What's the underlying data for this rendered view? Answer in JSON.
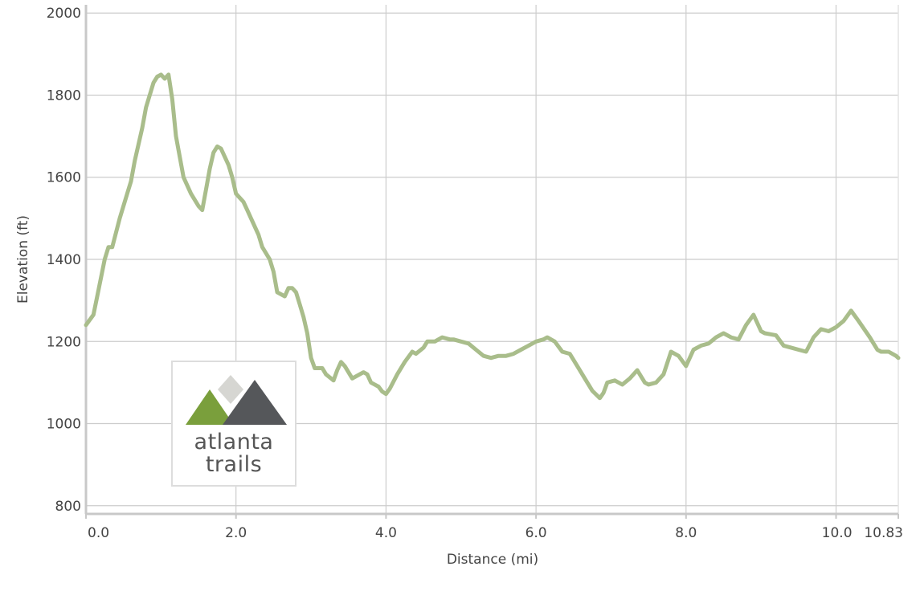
{
  "chart_data": {
    "type": "area",
    "xlabel": "Distance (mi)",
    "ylabel": "Elevation (ft)",
    "xlim": [
      0,
      10.83
    ],
    "ylim": [
      780,
      2020
    ],
    "x_ticks": [
      {
        "value": 0,
        "label": "0.0"
      },
      {
        "value": 2,
        "label": "2.0"
      },
      {
        "value": 4,
        "label": "4.0"
      },
      {
        "value": 6,
        "label": "6.0"
      },
      {
        "value": 8,
        "label": "8.0"
      },
      {
        "value": 10,
        "label": "10.0"
      },
      {
        "value": 10.83,
        "label": "10.83"
      }
    ],
    "y_ticks": [
      {
        "value": 800,
        "label": "800"
      },
      {
        "value": 1000,
        "label": "1000"
      },
      {
        "value": 1200,
        "label": "1200"
      },
      {
        "value": 1400,
        "label": "1400"
      },
      {
        "value": 1600,
        "label": "1600"
      },
      {
        "value": 1800,
        "label": "1800"
      },
      {
        "value": 2000,
        "label": "2000"
      }
    ],
    "grid": true,
    "series": [
      {
        "color": "#a9bd8b",
        "x": [
          0,
          0.1,
          0.15,
          0.25,
          0.3,
          0.35,
          0.45,
          0.55,
          0.6,
          0.65,
          0.75,
          0.8,
          0.9,
          0.95,
          1.0,
          1.05,
          1.1,
          1.15,
          1.2,
          1.25,
          1.3,
          1.4,
          1.5,
          1.55,
          1.6,
          1.65,
          1.7,
          1.75,
          1.8,
          1.85,
          1.9,
          1.95,
          2.0,
          2.1,
          2.15,
          2.2,
          2.3,
          2.35,
          2.45,
          2.5,
          2.55,
          2.65,
          2.7,
          2.75,
          2.8,
          2.85,
          2.9,
          2.95,
          3.0,
          3.05,
          3.1,
          3.15,
          3.2,
          3.3,
          3.35,
          3.4,
          3.45,
          3.55,
          3.6,
          3.7,
          3.75,
          3.8,
          3.85,
          3.9,
          3.95,
          4.0,
          4.05,
          4.15,
          4.25,
          4.35,
          4.4,
          4.5,
          4.55,
          4.65,
          4.75,
          4.85,
          4.9,
          5.0,
          5.1,
          5.2,
          5.3,
          5.4,
          5.5,
          5.6,
          5.7,
          5.8,
          5.9,
          6.0,
          6.1,
          6.15,
          6.25,
          6.35,
          6.45,
          6.55,
          6.65,
          6.75,
          6.85,
          6.9,
          6.95,
          7.05,
          7.15,
          7.25,
          7.35,
          7.45,
          7.5,
          7.6,
          7.7,
          7.8,
          7.9,
          8.0,
          8.1,
          8.2,
          8.3,
          8.4,
          8.5,
          8.6,
          8.7,
          8.8,
          8.9,
          9.0,
          9.05,
          9.2,
          9.3,
          9.4,
          9.5,
          9.6,
          9.7,
          9.8,
          9.9,
          10.0,
          10.1,
          10.2,
          10.3,
          10.45,
          10.55,
          10.6,
          10.7,
          10.8,
          10.83
        ],
        "y": [
          1240,
          1265,
          1310,
          1400,
          1430,
          1430,
          1500,
          1560,
          1590,
          1640,
          1720,
          1770,
          1830,
          1845,
          1850,
          1840,
          1850,
          1790,
          1700,
          1650,
          1600,
          1560,
          1530,
          1520,
          1570,
          1620,
          1660,
          1675,
          1670,
          1650,
          1630,
          1600,
          1560,
          1540,
          1520,
          1500,
          1460,
          1430,
          1400,
          1370,
          1320,
          1310,
          1330,
          1330,
          1320,
          1290,
          1260,
          1220,
          1160,
          1135,
          1135,
          1135,
          1120,
          1105,
          1130,
          1150,
          1140,
          1110,
          1115,
          1125,
          1120,
          1100,
          1095,
          1090,
          1078,
          1072,
          1085,
          1120,
          1150,
          1175,
          1170,
          1185,
          1200,
          1200,
          1210,
          1205,
          1205,
          1200,
          1195,
          1180,
          1165,
          1160,
          1165,
          1165,
          1170,
          1180,
          1190,
          1200,
          1205,
          1210,
          1200,
          1175,
          1170,
          1140,
          1110,
          1080,
          1062,
          1075,
          1100,
          1105,
          1095,
          1110,
          1130,
          1100,
          1095,
          1100,
          1120,
          1175,
          1165,
          1140,
          1180,
          1190,
          1195,
          1210,
          1220,
          1210,
          1205,
          1240,
          1265,
          1225,
          1220,
          1215,
          1190,
          1185,
          1180,
          1175,
          1210,
          1230,
          1225,
          1235,
          1250,
          1275,
          1250,
          1210,
          1180,
          1175,
          1175,
          1165,
          1160
        ]
      }
    ]
  },
  "watermark": {
    "line1": "atlanta",
    "line2": "trails",
    "colors": {
      "green": "#7a9f3c",
      "light_gray": "#d6d6d2",
      "dark_gray": "#55575a"
    }
  }
}
